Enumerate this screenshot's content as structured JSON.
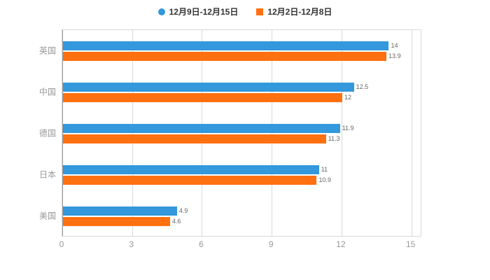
{
  "legend": {
    "items": [
      {
        "label": "12月9日-12月15日",
        "color": "#3398DC",
        "shape": "circle"
      },
      {
        "label": "12月2日-12月8日",
        "color": "#FF7011",
        "shape": "square"
      }
    ]
  },
  "chart_data": {
    "type": "bar",
    "orientation": "horizontal",
    "title": "",
    "xlabel": "",
    "ylabel": "",
    "categories": [
      "英国",
      "中国",
      "德国",
      "日本",
      "美国"
    ],
    "series": [
      {
        "name": "12月9日-12月15日",
        "color": "#3398DC",
        "values": [
          14,
          12.5,
          11.9,
          11,
          4.9
        ]
      },
      {
        "name": "12月2日-12月8日",
        "color": "#FF7011",
        "values": [
          13.9,
          12,
          11.3,
          10.9,
          4.6
        ]
      }
    ],
    "xlim": [
      0,
      15.4
    ],
    "xticks": [
      0,
      3,
      6,
      9,
      12,
      15
    ],
    "grid": true,
    "legend_position": "top",
    "colors": {
      "grid": "#d9d9d9",
      "axis": "#999999",
      "tick_text": "#999999",
      "category_text": "#999999",
      "value_label": "#666666",
      "background": "#ffffff"
    }
  }
}
